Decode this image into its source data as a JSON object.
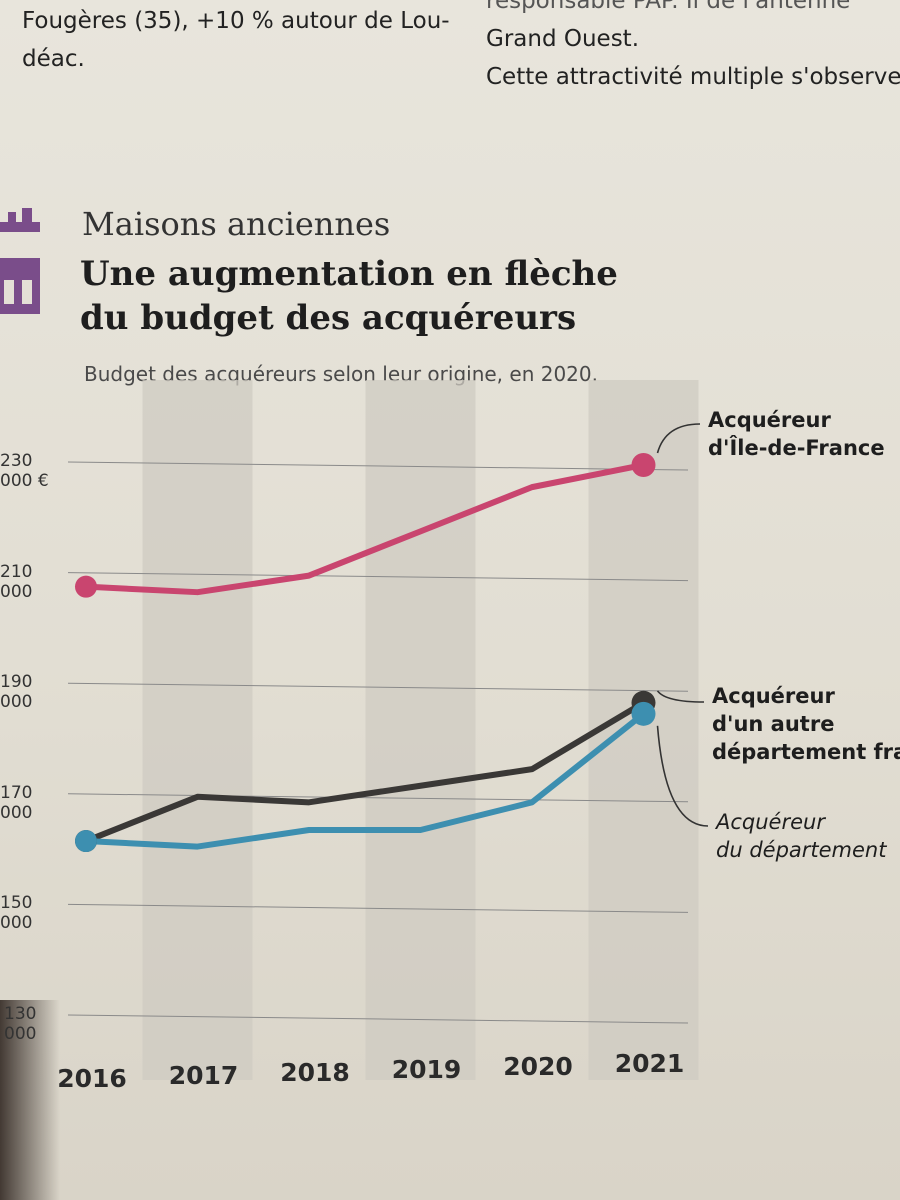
{
  "article": {
    "top_left_lines": [
      "Fougères (35), +10 % autour de Lou-",
      "déac."
    ],
    "top_right_lines": [
      "responsable PAP. Il de l'antenne",
      "Grand Ouest.",
      "Cette attractivité multiple s'observe"
    ]
  },
  "chart": {
    "kicker": "Maisons anciennes",
    "title_lines": [
      "Une augmentation en flèche",
      "du budget des acquéreurs"
    ],
    "subtitle": "Budget des acquéreurs selon leur origine, en 2020.",
    "icon": "house-icon",
    "colors": {
      "idf": "#c9456f",
      "other": "#3a3836",
      "dept": "#3d8fb0",
      "band": "#cfcbc2",
      "grid": "#8a8a8a"
    }
  },
  "chart_data": {
    "type": "line",
    "title": "Une augmentation en flèche du budget des acquéreurs",
    "subtitle": "Budget des acquéreurs selon leur origine, en 2020.",
    "x": [
      "2016",
      "2017",
      "2018",
      "2019",
      "2020",
      "2021"
    ],
    "y_ticks": [
      "130 000",
      "150 000",
      "170 000",
      "190 000",
      "210 000",
      "230 000 €"
    ],
    "y_tick_values": [
      130000,
      150000,
      170000,
      190000,
      210000,
      230000
    ],
    "ylim": [
      130000,
      230000
    ],
    "grid": true,
    "series": [
      {
        "name_lines": [
          "Acquéreur",
          "d'Île-de-France"
        ],
        "key": "idf",
        "values": [
          208000,
          207000,
          210000,
          218000,
          226000,
          230000
        ]
      },
      {
        "name_lines": [
          "Acquéreur",
          "d'un autre",
          "département fra"
        ],
        "key": "other",
        "values": [
          162000,
          170000,
          169000,
          172000,
          175000,
          187000
        ]
      },
      {
        "name_lines": [
          "Acquéreur",
          "du département"
        ],
        "key": "dept",
        "values": [
          162000,
          161000,
          164000,
          164000,
          169000,
          185000
        ]
      }
    ]
  }
}
